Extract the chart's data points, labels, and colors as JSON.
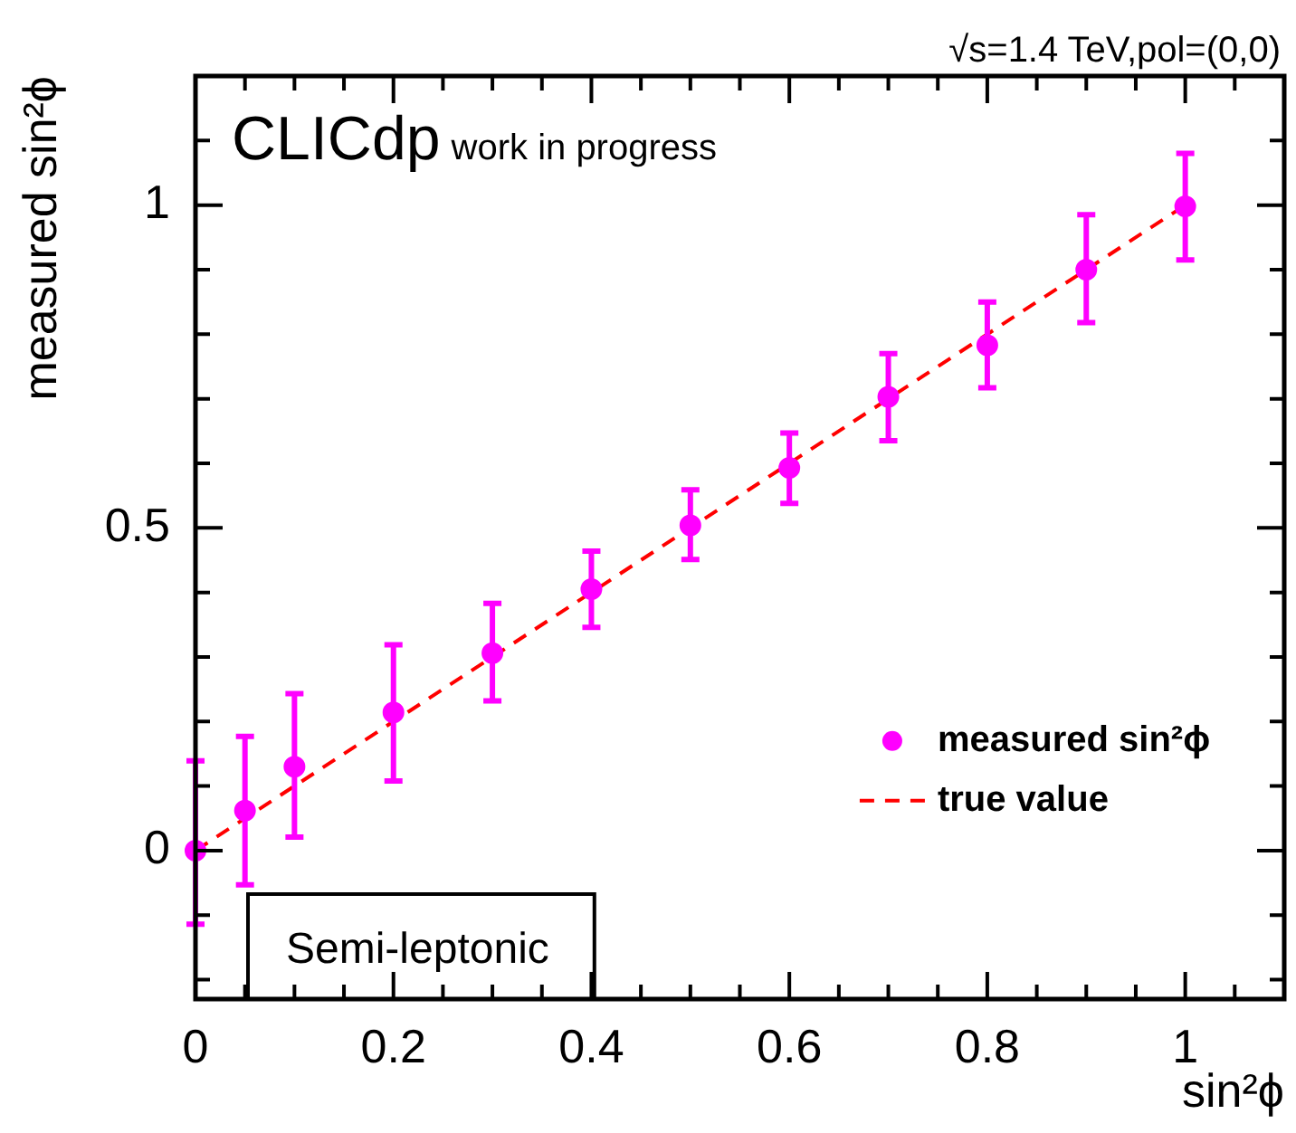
{
  "chart_data": {
    "type": "scatter",
    "xlabel": "sin²ϕ",
    "ylabel": "measured sin²ϕ",
    "xlim": [
      0,
      1.1
    ],
    "ylim": [
      -0.23,
      1.2
    ],
    "xticks": [
      0,
      {
        "value": 0.05,
        "label": null
      },
      0.2,
      {
        "value": 0.1,
        "label": null
      },
      {
        "value": 0.15,
        "label": null
      },
      {
        "value": 0.25,
        "label": null
      },
      {
        "value": 0.3,
        "label": null
      },
      {
        "value": 0.35,
        "label": null
      },
      0.4,
      {
        "value": 0.45,
        "label": null
      },
      {
        "value": 0.5,
        "label": null
      },
      {
        "value": 0.55,
        "label": null
      },
      0.6,
      {
        "value": 0.65,
        "label": null
      },
      {
        "value": 0.7,
        "label": null
      },
      {
        "value": 0.75,
        "label": null
      },
      0.8,
      {
        "value": 0.85,
        "label": null
      },
      {
        "value": 0.9,
        "label": null
      },
      {
        "value": 0.95,
        "label": null
      },
      1,
      {
        "value": 1.05,
        "label": null
      }
    ],
    "yticks": [
      {
        "value": -0.2,
        "label": null
      },
      {
        "value": -0.1,
        "label": null
      },
      0,
      {
        "value": 0.1,
        "label": null
      },
      {
        "value": 0.2,
        "label": null
      },
      {
        "value": 0.3,
        "label": null
      },
      {
        "value": 0.4,
        "label": null
      },
      0.5,
      {
        "value": 0.6,
        "label": null
      },
      {
        "value": 0.7,
        "label": null
      },
      {
        "value": 0.8,
        "label": null
      },
      {
        "value": 0.9,
        "label": null
      },
      1,
      {
        "value": 1.1,
        "label": null
      }
    ],
    "grid": false,
    "legend": "right",
    "marker": "circle",
    "series": [
      {
        "name": "measured sin²ϕ",
        "color": "#ff00ff",
        "x": [
          0,
          0.05,
          0.1,
          0.2,
          0.3,
          0.4,
          0.5,
          0.6,
          0.7,
          0.8,
          0.9,
          1
        ],
        "values": [
          0,
          0.062,
          0.13,
          0.214,
          0.306,
          0.405,
          0.504,
          0.593,
          0.703,
          0.783,
          0.9,
          0.998
        ],
        "errors": [
          [
            -0.114,
            0.139
          ],
          [
            -0.053,
            0.177
          ],
          [
            0.021,
            0.243
          ],
          [
            0.108,
            0.319
          ],
          [
            0.232,
            0.383
          ],
          [
            0.346,
            0.464
          ],
          [
            0.451,
            0.559
          ],
          [
            0.538,
            0.647
          ],
          [
            0.635,
            0.77
          ],
          [
            0.717,
            0.85
          ],
          [
            0.818,
            0.985
          ],
          [
            0.915,
            1.08
          ]
        ]
      },
      {
        "name": "true value",
        "type": "line",
        "color": "#ff0000",
        "line_style": "dashed",
        "marker": "none",
        "x": [
          0,
          1
        ],
        "values": [
          0,
          1
        ]
      }
    ],
    "annotations": [
      "√s=1.4 TeV,pol=(0,0)",
      "CLICdp",
      "work in progress",
      "Semi-leptonic"
    ]
  }
}
